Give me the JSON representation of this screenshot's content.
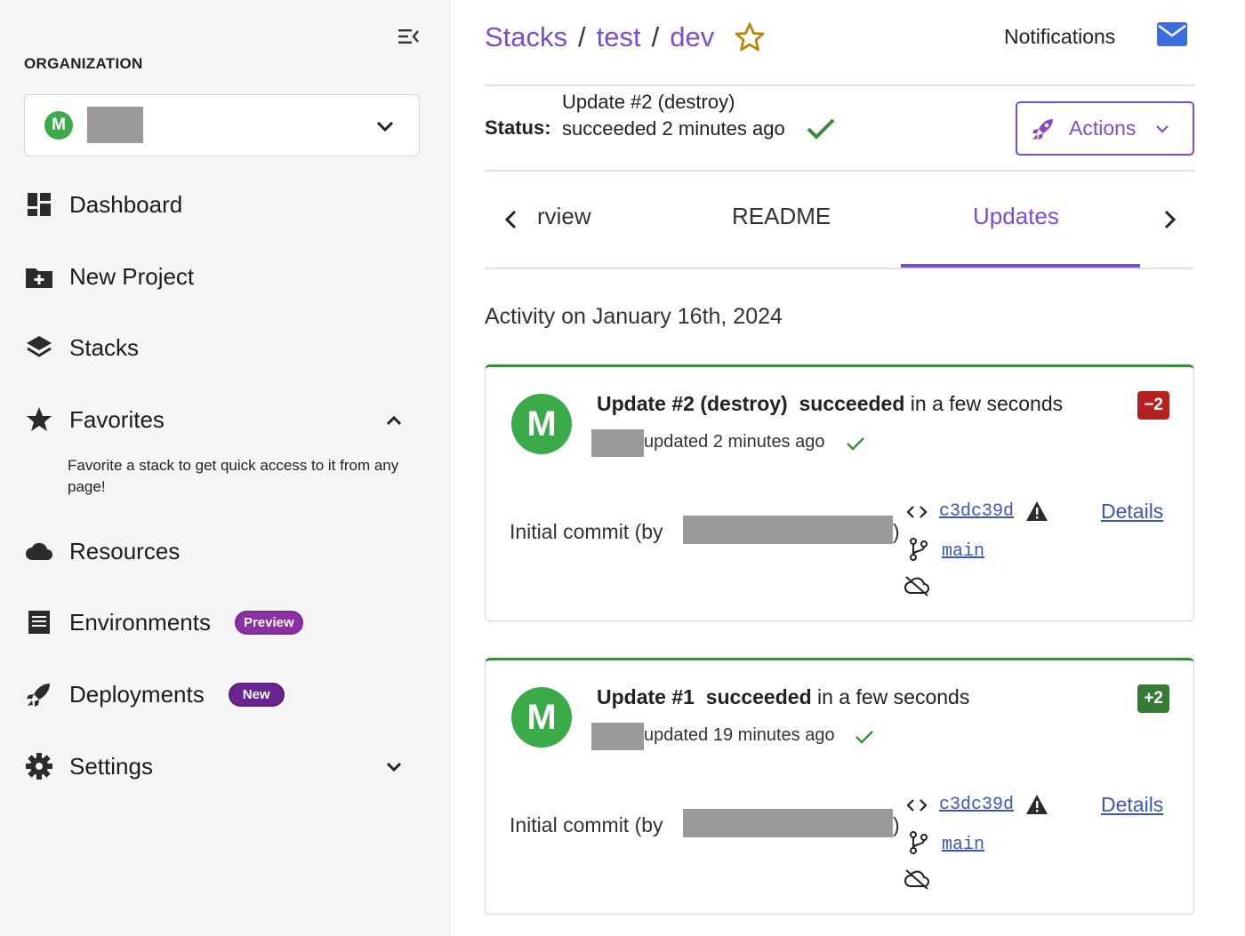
{
  "sidebar": {
    "org_label": "ORGANIZATION",
    "org_avatar_letter": "M",
    "nav": {
      "dashboard": "Dashboard",
      "new_project": "New Project",
      "stacks": "Stacks",
      "favorites": "Favorites",
      "resources": "Resources",
      "environments": "Environments",
      "deployments": "Deployments",
      "settings": "Settings"
    },
    "favorites_help": "Favorite a stack to get quick access to it from any page!",
    "badges": {
      "environments": "Preview",
      "deployments": "New"
    }
  },
  "header": {
    "breadcrumb": [
      "Stacks",
      "test",
      "dev"
    ],
    "breadcrumb_separator": "/",
    "notifications_label": "Notifications"
  },
  "status": {
    "label": "Status:",
    "text": "Update #2 (destroy) succeeded 2 minutes ago"
  },
  "actions": {
    "label": "Actions"
  },
  "tabs": [
    {
      "label": "rview",
      "active": false
    },
    {
      "label": "README",
      "active": false
    },
    {
      "label": "Updates",
      "active": true
    }
  ],
  "activity": {
    "heading": "Activity on January 16th, 2024",
    "updates": [
      {
        "avatar": "M",
        "title": "Update #2 (destroy)",
        "result": "succeeded",
        "duration": "in a few seconds",
        "count": "−2",
        "updated_text": "updated 2 minutes ago",
        "commit_prefix": "Initial commit (by",
        "commit_suffix": ")",
        "sha": "c3dc39d",
        "branch": "main",
        "details": "Details"
      },
      {
        "avatar": "M",
        "title": "Update #1",
        "result": "succeeded",
        "duration": "in a few seconds",
        "count": "+2",
        "updated_text": "updated 19 minutes ago",
        "commit_prefix": "Initial commit (by",
        "commit_suffix": ")",
        "sha": "c3dc39d",
        "branch": "main",
        "details": "Details"
      }
    ]
  },
  "colors": {
    "accent": "#7b4dd4",
    "success": "#3c8a3c",
    "avatar": "#3bab4a",
    "destroy_badge": "#b42020",
    "create_badge": "#357a35",
    "link": "#3a57b8"
  },
  "icons": [
    "menu-collapse-icon",
    "chevron-down-icon",
    "dashboard-icon",
    "folder-plus-icon",
    "layers-icon",
    "star-icon",
    "chevron-up-icon",
    "cloud-icon",
    "list-icon",
    "rocket-icon",
    "gear-icon",
    "mail-icon",
    "check-icon",
    "chevron-left-icon",
    "chevron-right-icon",
    "code-icon",
    "warning-icon",
    "branch-icon",
    "cloud-off-icon"
  ]
}
